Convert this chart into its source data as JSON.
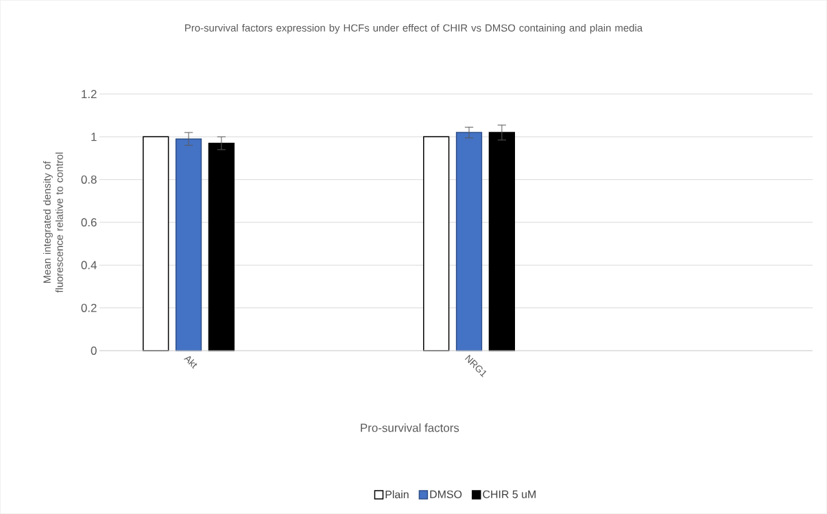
{
  "chart_data": {
    "type": "bar",
    "title": "Pro-survival factors expression by HCFs under effect of CHIR vs DMSO containing and plain media",
    "xlabel": "Pro-survival factors",
    "ylabel": "Mean integrated density of fluorescence relative to control",
    "categories": [
      "Akt",
      "NRG1",
      null
    ],
    "series": [
      {
        "name": "Plain",
        "color": "#ffffff",
        "values": [
          1,
          1,
          null
        ]
      },
      {
        "name": "DMSO",
        "color": "#4472c4",
        "values": [
          0.99,
          1.02,
          null
        ],
        "errors": [
          0.03,
          0.025,
          null
        ]
      },
      {
        "name": "CHIR 5 uM",
        "color": "#000000",
        "values": [
          0.97,
          1.02,
          null
        ],
        "errors": [
          0.03,
          0.035,
          null
        ]
      }
    ],
    "ylim": [
      0,
      1.2
    ],
    "yticks": [
      0,
      0.2,
      0.4,
      0.6,
      0.8,
      1,
      1.2
    ],
    "grid": "y",
    "legend": "bottom"
  }
}
